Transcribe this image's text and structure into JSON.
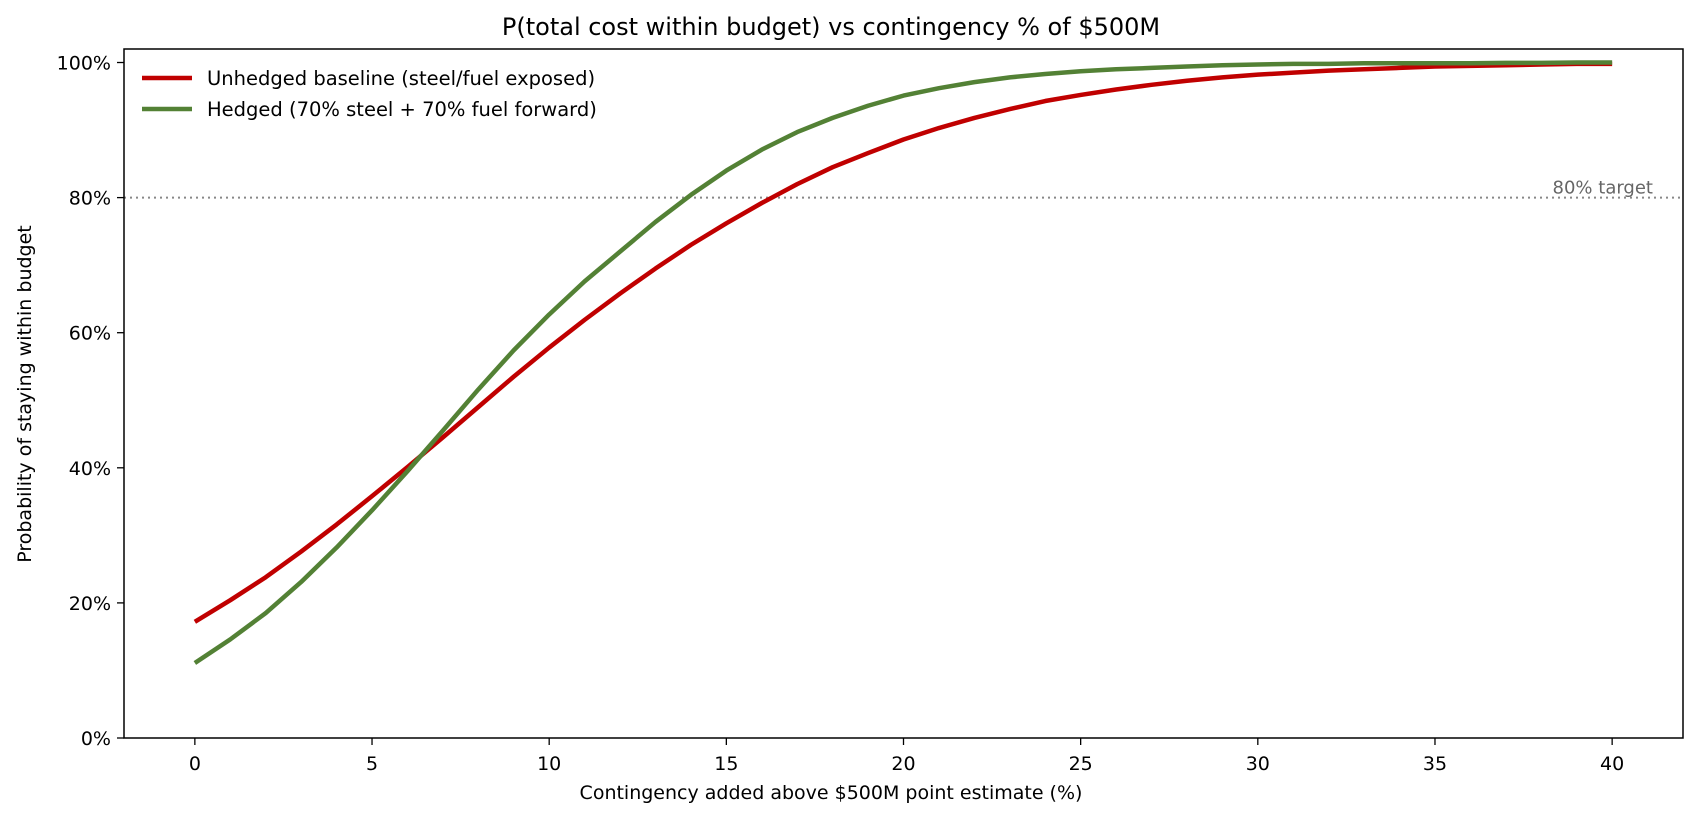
{
  "chart_data": {
    "type": "line",
    "title": "P(total cost within budget) vs contingency % of $500M",
    "xlabel": "Contingency added above $500M point estimate  (%)",
    "ylabel": "Probability of staying within budget",
    "xlim": [
      -2,
      42
    ],
    "ylim": [
      0,
      1.02
    ],
    "x_ticks": [
      0,
      5,
      10,
      15,
      20,
      25,
      30,
      35,
      40
    ],
    "y_ticks": [
      0,
      0.2,
      0.4,
      0.6,
      0.8,
      1.0
    ],
    "y_tick_labels": [
      "0%",
      "20%",
      "40%",
      "60%",
      "80%",
      "100%"
    ],
    "x": [
      0,
      1,
      2,
      3,
      4,
      5,
      6,
      7,
      8,
      9,
      10,
      11,
      12,
      13,
      14,
      15,
      16,
      17,
      18,
      19,
      20,
      21,
      22,
      23,
      24,
      25,
      26,
      27,
      28,
      29,
      30,
      31,
      32,
      33,
      34,
      35,
      36,
      37,
      38,
      39,
      40
    ],
    "series": [
      {
        "name": "Unhedged baseline (steel/fuel exposed)",
        "color": "#c00000",
        "values": [
          0.172,
          0.204,
          0.238,
          0.276,
          0.316,
          0.358,
          0.401,
          0.445,
          0.49,
          0.535,
          0.578,
          0.619,
          0.658,
          0.695,
          0.73,
          0.762,
          0.792,
          0.82,
          0.845,
          0.866,
          0.886,
          0.903,
          0.918,
          0.931,
          0.943,
          0.952,
          0.96,
          0.967,
          0.973,
          0.978,
          0.982,
          0.985,
          0.988,
          0.99,
          0.992,
          0.994,
          0.995,
          0.996,
          0.997,
          0.998,
          0.998
        ]
      },
      {
        "name": "Hedged (70% steel + 70% fuel forward)",
        "color": "#538135",
        "values": [
          0.111,
          0.146,
          0.185,
          0.231,
          0.282,
          0.337,
          0.395,
          0.455,
          0.516,
          0.574,
          0.627,
          0.676,
          0.72,
          0.764,
          0.804,
          0.84,
          0.871,
          0.897,
          0.918,
          0.936,
          0.951,
          0.962,
          0.971,
          0.978,
          0.983,
          0.987,
          0.99,
          0.992,
          0.994,
          0.996,
          0.997,
          0.998,
          0.998,
          0.999,
          0.999,
          0.999,
          0.999,
          0.9995,
          0.9995,
          1.0,
          1.0
        ]
      }
    ],
    "reference_line": {
      "y": 0.8,
      "label": "80% target",
      "color": "#888888",
      "style": "dotted"
    },
    "legend_position": "top-left",
    "grid": false
  }
}
